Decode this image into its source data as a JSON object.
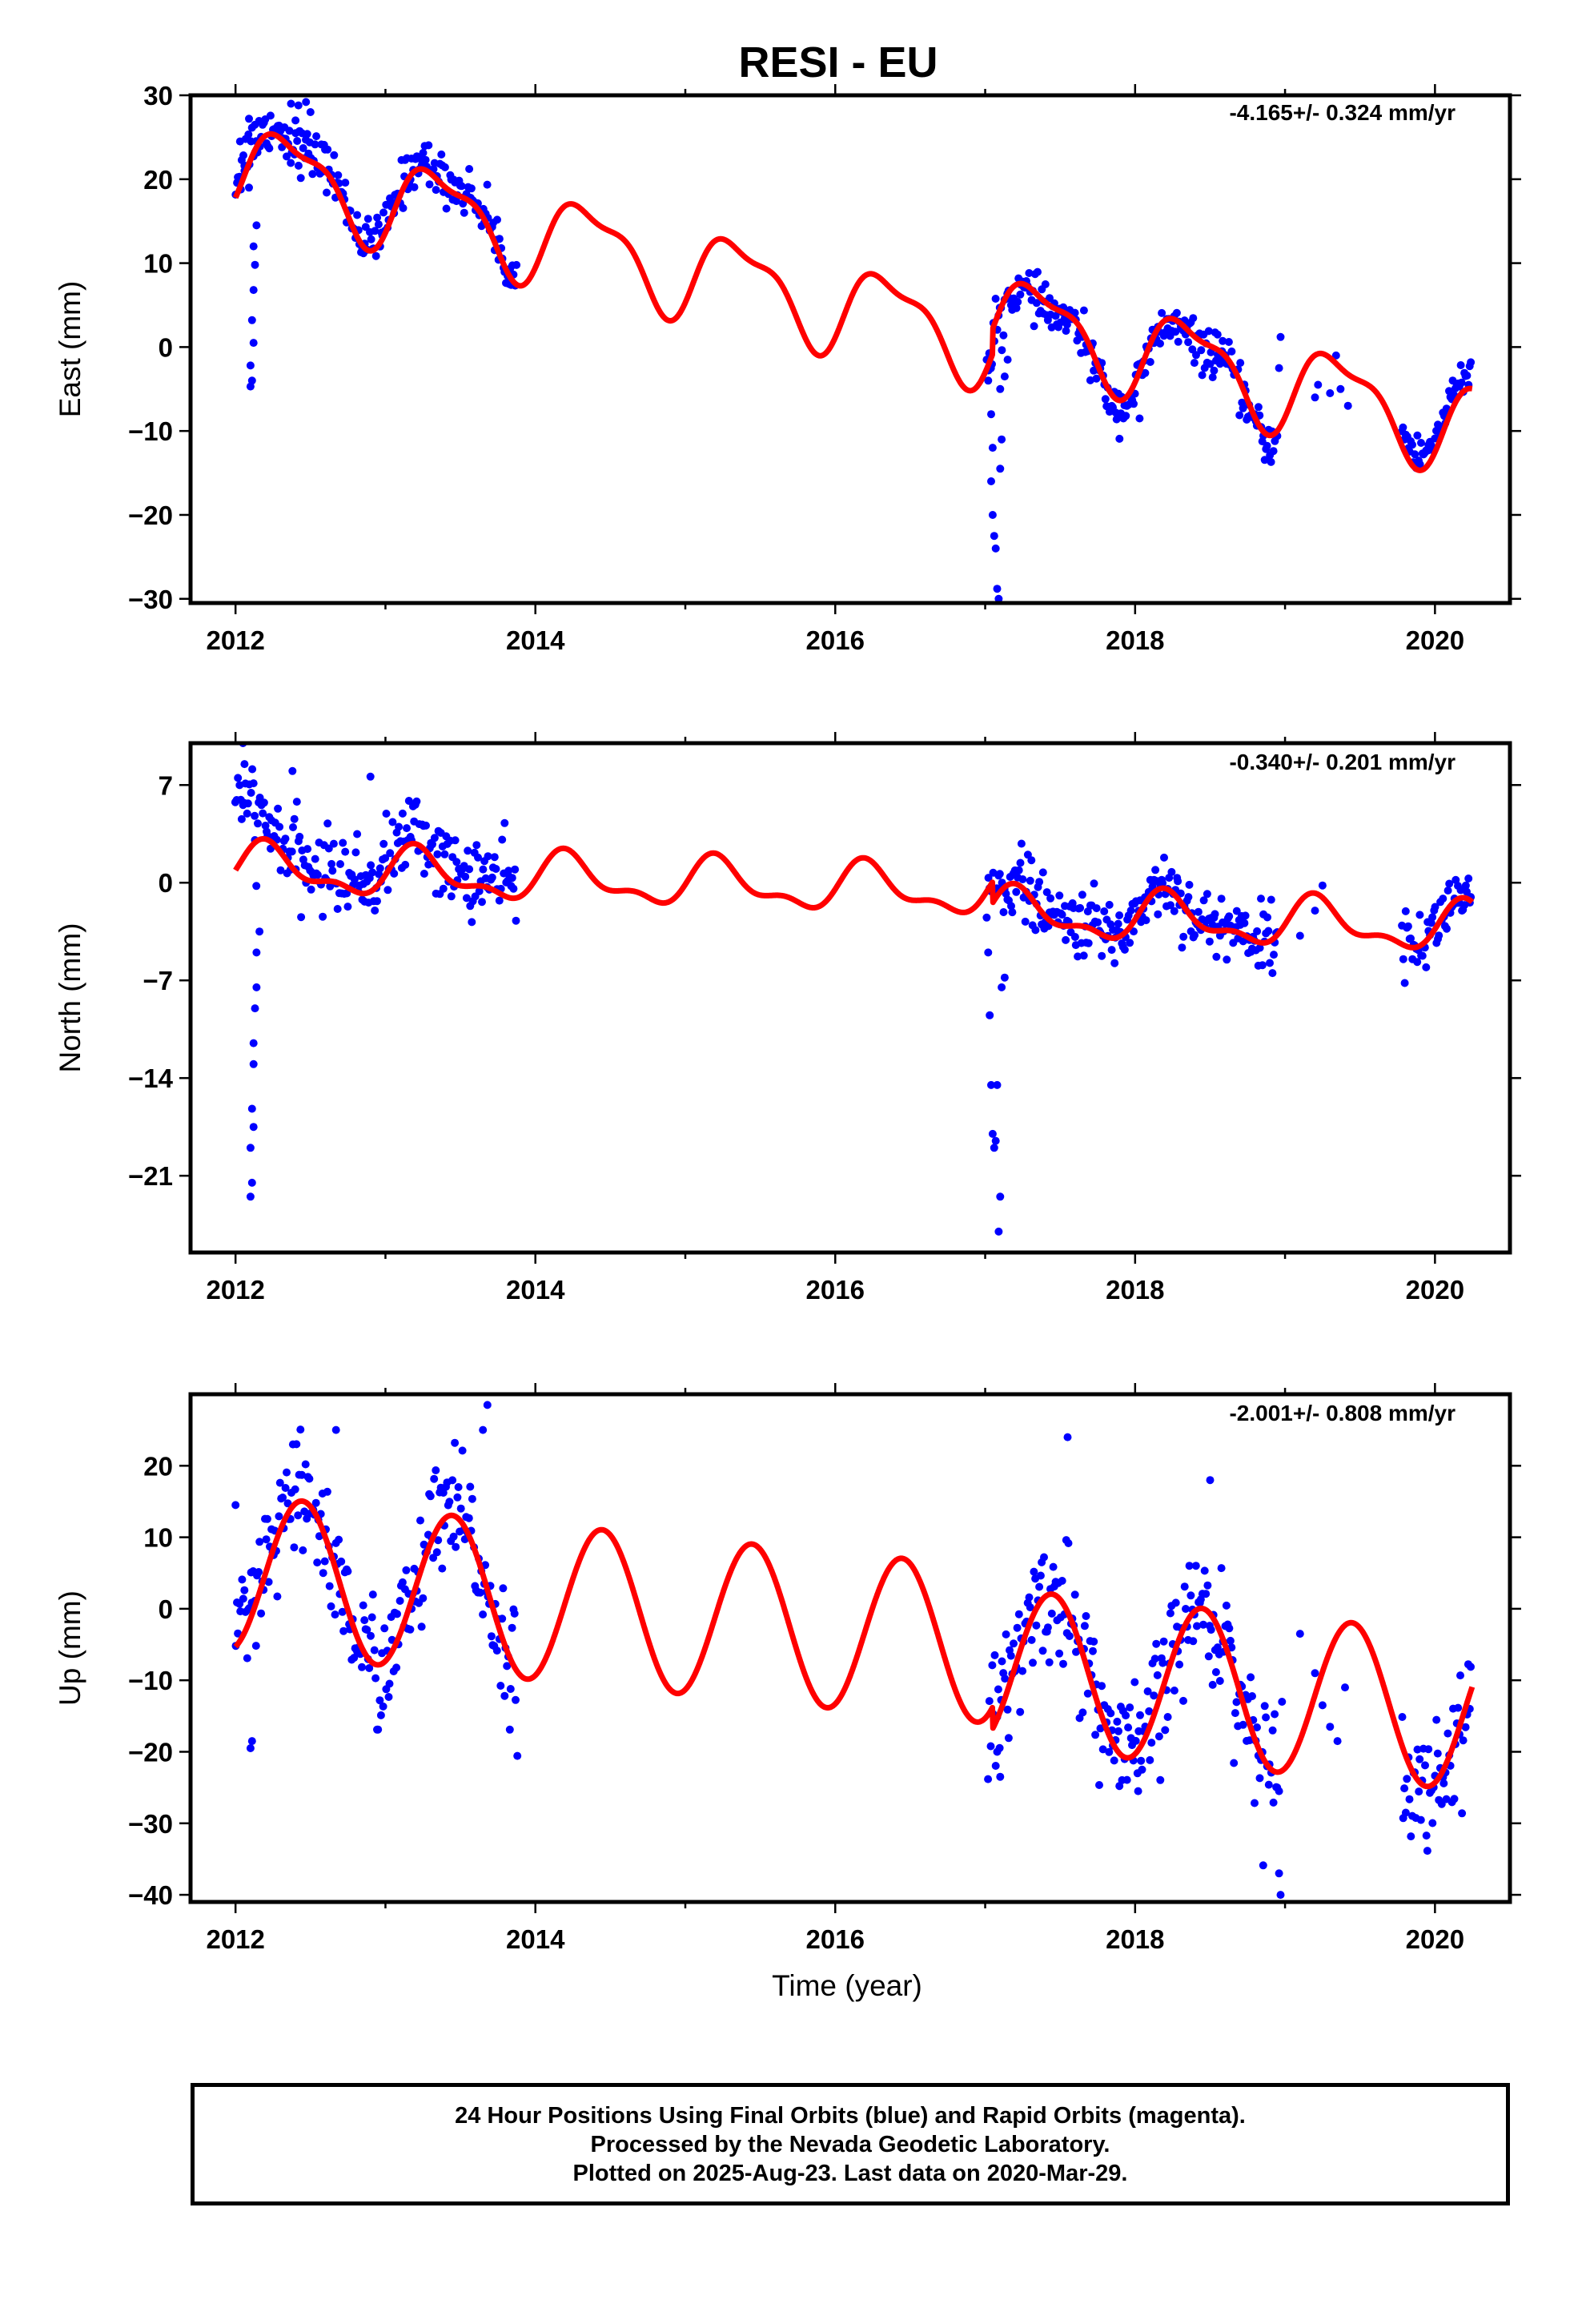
{
  "title": "RESI - EU",
  "colors": {
    "data": "#0000ff",
    "model": "#ff0000",
    "frame": "#000000"
  },
  "chart_data": [
    {
      "type": "scatter",
      "component": "east",
      "ylabel": "East (mm)",
      "rate": "-4.165+/- 0.324 mm/yr",
      "xlim": [
        2011.7,
        2020.5
      ],
      "ylim": [
        -30.5,
        30
      ],
      "xticks": [
        2012,
        2014,
        2016,
        2018,
        2020
      ],
      "xtick_labels": [
        "2012",
        "2014",
        "2016",
        "2018",
        "2020"
      ],
      "yticks": [
        -30,
        -20,
        -10,
        0,
        10,
        20,
        30
      ],
      "ytick_labels": [
        "−30",
        "−20",
        "−10",
        "0",
        "10",
        "20",
        "30"
      ],
      "fit": {
        "t0": 2012.0,
        "offset": 21.8,
        "trend": -4.165,
        "annual_sin": 3.8,
        "annual_cos": -3.2,
        "semi_sin": 1.6,
        "semi_cos": -0.8,
        "steps": [
          {
            "t": 2017.05,
            "size": 3.0
          }
        ]
      },
      "segments": [
        {
          "x": [
            2012.0,
            2012.13
          ],
          "noise": 1.6,
          "dy": 2.0
        },
        {
          "x": [
            2012.13,
            2013.88
          ],
          "noise": 1.4,
          "dy": 0.8
        },
        {
          "x": [
            2017.02,
            2018.95
          ],
          "noise": 1.3,
          "dy": -0.8
        },
        {
          "x": [
            2019.78,
            2020.24
          ],
          "noise": 1.2,
          "dy": 1.8
        }
      ],
      "points": [
        [
          2012.1,
          -4.7
        ],
        [
          2012.11,
          -4.0
        ],
        [
          2012.1,
          -2.2
        ],
        [
          2012.12,
          0.5
        ],
        [
          2012.11,
          3.2
        ],
        [
          2012.12,
          6.8
        ],
        [
          2012.13,
          9.8
        ],
        [
          2012.12,
          12.0
        ],
        [
          2012.14,
          14.5
        ],
        [
          2012.09,
          27.2
        ],
        [
          2012.03,
          24.5
        ],
        [
          2012.06,
          21.0
        ],
        [
          2012.09,
          19.0
        ],
        [
          2012.37,
          29.0
        ],
        [
          2012.42,
          28.8
        ],
        [
          2012.47,
          29.2
        ],
        [
          2012.4,
          27.0
        ],
        [
          2012.5,
          28.0
        ],
        [
          2017.01,
          -1.5
        ],
        [
          2017.02,
          -4.0
        ],
        [
          2017.04,
          -8.0
        ],
        [
          2017.05,
          -12.0
        ],
        [
          2017.04,
          -16.0
        ],
        [
          2017.05,
          -20.0
        ],
        [
          2017.06,
          -22.5
        ],
        [
          2017.07,
          -24.0
        ],
        [
          2017.08,
          -28.8
        ],
        [
          2017.09,
          -30.0
        ],
        [
          2017.1,
          -14.5
        ],
        [
          2017.11,
          -11.0
        ],
        [
          2017.1,
          -5.0
        ],
        [
          2017.13,
          -3.5
        ],
        [
          2017.15,
          -1.5
        ],
        [
          2018.03,
          -8.5
        ],
        [
          2018.55,
          1.5
        ],
        [
          2018.58,
          -0.5
        ],
        [
          2018.97,
          1.2
        ],
        [
          2018.96,
          -2.5
        ],
        [
          2019.2,
          -6.0
        ],
        [
          2019.22,
          -4.5
        ],
        [
          2019.3,
          -5.5
        ],
        [
          2019.34,
          -1.0
        ],
        [
          2019.37,
          -5.0
        ],
        [
          2019.42,
          -7.0
        ]
      ]
    },
    {
      "type": "scatter",
      "component": "north",
      "ylabel": "North (mm)",
      "rate": "-0.340+/- 0.201 mm/yr",
      "xlim": [
        2011.7,
        2020.5
      ],
      "ylim": [
        -26.5,
        10
      ],
      "xticks": [
        2012,
        2014,
        2016,
        2018,
        2020
      ],
      "xtick_labels": [
        "2012",
        "2014",
        "2016",
        "2018",
        "2020"
      ],
      "yticks": [
        -21,
        -14,
        -7,
        0,
        7
      ],
      "ytick_labels": [
        "−21",
        "−14",
        "−7",
        "0",
        "7"
      ],
      "fit": {
        "t0": 2012.0,
        "offset": 1.0,
        "trend": -0.34,
        "annual_sin": 1.5,
        "annual_cos": 0.3,
        "semi_sin": 0.6,
        "semi_cos": -0.4,
        "steps": [
          {
            "t": 2017.05,
            "size": -1.5
          }
        ]
      },
      "segments": [
        {
          "x": [
            2012.0,
            2012.13
          ],
          "noise": 1.2,
          "dy": 3.8
        },
        {
          "x": [
            2012.13,
            2013.88
          ],
          "noise": 1.4,
          "dy": 0.8
        },
        {
          "x": [
            2017.02,
            2018.95
          ],
          "noise": 1.2,
          "dy": 0.3
        },
        {
          "x": [
            2019.78,
            2020.24
          ],
          "noise": 1.1,
          "dy": 0.2
        }
      ],
      "points": [
        [
          2012.05,
          10.0
        ],
        [
          2012.06,
          8.5
        ],
        [
          2012.1,
          -22.5
        ],
        [
          2012.11,
          -21.5
        ],
        [
          2012.1,
          -19.0
        ],
        [
          2012.12,
          -17.5
        ],
        [
          2012.11,
          -16.2
        ],
        [
          2012.12,
          -13.0
        ],
        [
          2012.12,
          -11.5
        ],
        [
          2012.13,
          -9.0
        ],
        [
          2012.14,
          -7.5
        ],
        [
          2012.14,
          -5.0
        ],
        [
          2012.16,
          -3.5
        ],
        [
          2012.38,
          8.0
        ],
        [
          2012.9,
          7.6
        ],
        [
          2017.01,
          -2.5
        ],
        [
          2017.02,
          -5.0
        ],
        [
          2017.03,
          -9.5
        ],
        [
          2017.04,
          -14.5
        ],
        [
          2017.05,
          -18.0
        ],
        [
          2017.06,
          -19.0
        ],
        [
          2017.07,
          -18.5
        ],
        [
          2017.08,
          -14.5
        ],
        [
          2017.09,
          -25.0
        ],
        [
          2017.1,
          -22.5
        ],
        [
          2017.11,
          -7.5
        ],
        [
          2017.13,
          -6.8
        ],
        [
          2019.1,
          -3.8
        ],
        [
          2019.2,
          -2.0
        ],
        [
          2019.25,
          -0.2
        ]
      ]
    },
    {
      "type": "scatter",
      "component": "up",
      "ylabel": "Up (mm)",
      "rate": "-2.001+/- 0.808 mm/yr",
      "xlim": [
        2011.7,
        2020.5
      ],
      "ylim": [
        -41,
        30
      ],
      "xticks": [
        2012,
        2014,
        2016,
        2018,
        2020
      ],
      "xtick_labels": [
        "2012",
        "2014",
        "2016",
        "2018",
        "2020"
      ],
      "yticks": [
        -40,
        -30,
        -20,
        -10,
        0,
        10,
        20
      ],
      "ytick_labels": [
        "−40",
        "−30",
        "−20",
        "−10",
        "0",
        "10",
        "20"
      ],
      "xlabel": "Time (year)",
      "fit": {
        "t0": 2012.0,
        "offset": 5.0,
        "trend": -2.001,
        "annual_sin": 3.7,
        "annual_cos": -10.3,
        "semi_sin": 0.0,
        "semi_cos": 0.0,
        "steps": [
          {
            "t": 2017.05,
            "size": -3.0
          }
        ]
      },
      "segments": [
        {
          "x": [
            2012.0,
            2013.88
          ],
          "noise": 4.5,
          "dy": 0.0
        },
        {
          "x": [
            2017.02,
            2018.95
          ],
          "noise": 4.5,
          "dy": 0.0
        },
        {
          "x": [
            2019.78,
            2020.24
          ],
          "noise": 4.5,
          "dy": 0.0
        }
      ],
      "points": [
        [
          2012.1,
          -19.5
        ],
        [
          2012.11,
          -18.5
        ],
        [
          2012.0,
          14.5
        ],
        [
          2012.67,
          25.0
        ],
        [
          2013.68,
          28.5
        ],
        [
          2013.65,
          25.0
        ],
        [
          2017.55,
          24.0
        ],
        [
          2018.02,
          -25.5
        ],
        [
          2018.5,
          18.0
        ],
        [
          2018.96,
          -25.5
        ],
        [
          2018.96,
          -37.0
        ],
        [
          2018.97,
          -40.0
        ],
        [
          2018.98,
          -13.0
        ],
        [
          2019.1,
          -3.5
        ],
        [
          2019.2,
          -9.0
        ],
        [
          2019.25,
          -13.5
        ],
        [
          2019.3,
          -16.5
        ],
        [
          2019.35,
          -18.5
        ],
        [
          2019.4,
          -11.0
        ],
        [
          2017.1,
          -23.5
        ],
        [
          2017.08,
          -20.0
        ]
      ]
    }
  ],
  "footer": {
    "line1": "24 Hour Positions Using Final Orbits (blue) and Rapid Orbits (magenta).",
    "line2": "Processed by the Nevada Geodetic Laboratory.",
    "line3": "Plotted on 2025-Aug-23. Last data on 2020-Mar-29."
  }
}
